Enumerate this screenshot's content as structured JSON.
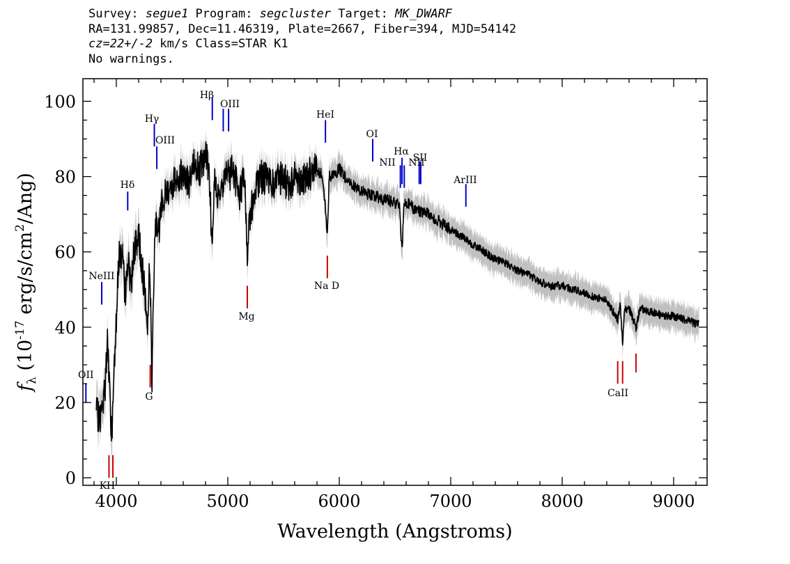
{
  "header": {
    "line1_prefix": "Survey: ",
    "survey": "segue1",
    "program_prefix": " Program: ",
    "program": "segcluster",
    "target_prefix": " Target: ",
    "target": "MK_DWARF",
    "line2": "RA=131.99857, Dec=11.46319, Plate=2667, Fiber=394, MJD=54142",
    "line3_cz": "cz=22+/-2",
    "line3_rest": " km/s Class=STAR K1",
    "line4": "No warnings."
  },
  "chart_data": {
    "type": "line",
    "title": "",
    "xlabel": "Wavelength (Angstroms)",
    "ylabel": "f_λ (10^-17 erg/s/cm^2/Ang)",
    "xlim": [
      3700,
      9300
    ],
    "ylim": [
      -2,
      106
    ],
    "x_ticks": [
      4000,
      5000,
      6000,
      7000,
      8000,
      9000
    ],
    "y_ticks": [
      0,
      20,
      40,
      60,
      80,
      100
    ],
    "x_tick_labels": [
      "4000",
      "5000",
      "6000",
      "7000",
      "8000",
      "9000"
    ],
    "y_tick_labels": [
      "0",
      "20",
      "40",
      "60",
      "80",
      "100"
    ],
    "series": [
      {
        "color": "#000000",
        "error_color": "#c0c0c0",
        "x": [
          3820,
          3850,
          3880,
          3900,
          3920,
          3940,
          3960,
          3980,
          4000,
          4020,
          4050,
          4080,
          4102,
          4130,
          4160,
          4200,
          4240,
          4280,
          4300,
          4320,
          4340,
          4360,
          4380,
          4400,
          4450,
          4500,
          4550,
          4600,
          4650,
          4700,
          4750,
          4800,
          4830,
          4861,
          4880,
          4900,
          4950,
          5000,
          5050,
          5100,
          5150,
          5175,
          5200,
          5250,
          5300,
          5350,
          5400,
          5450,
          5500,
          5550,
          5600,
          5650,
          5700,
          5750,
          5800,
          5850,
          5893,
          5910,
          5950,
          6000,
          6050,
          6100,
          6200,
          6300,
          6400,
          6500,
          6540,
          6563,
          6580,
          6600,
          6700,
          6800,
          6900,
          7000,
          7100,
          7200,
          7300,
          7400,
          7500,
          7600,
          7700,
          7800,
          7900,
          8000,
          8100,
          8200,
          8300,
          8400,
          8498,
          8520,
          8542,
          8560,
          8600,
          8662,
          8700,
          8800,
          8900,
          9000,
          9100,
          9200,
          9230
        ],
        "values": [
          17,
          16,
          18,
          25,
          37,
          22,
          10,
          30,
          43,
          58,
          60,
          48,
          58,
          52,
          60,
          64,
          54,
          40,
          58,
          25,
          60,
          70,
          65,
          72,
          76,
          78,
          80,
          81,
          78,
          83,
          82,
          85,
          83,
          60,
          82,
          75,
          79,
          80,
          82,
          75,
          80,
          60,
          70,
          77,
          80,
          79,
          78,
          80,
          79,
          78,
          80,
          79,
          80,
          81,
          82,
          80,
          65,
          80,
          80,
          82,
          80,
          78,
          76,
          75,
          74,
          73,
          72,
          60,
          72,
          73,
          71,
          70,
          68,
          66,
          64,
          62,
          60,
          58,
          57,
          55,
          54,
          52,
          51,
          51,
          50,
          49,
          48,
          47,
          42,
          46,
          36,
          45,
          45,
          40,
          45,
          44,
          43,
          43,
          42,
          41,
          41
        ]
      }
    ],
    "emission_lines": [
      {
        "label": "OII",
        "wavelength": 3727,
        "y_low": 20,
        "y_high": 25
      },
      {
        "label": "NeIII",
        "wavelength": 3869,
        "y_low": 46,
        "y_high": 52
      },
      {
        "label": "Hδ",
        "wavelength": 4102,
        "y_low": 71,
        "y_high": 76
      },
      {
        "label": "Hγ",
        "wavelength": 4341,
        "y_low": 88,
        "y_high": 94
      },
      {
        "label": "OIII",
        "wavelength": 4363,
        "y_low": 82,
        "y_high": 88
      },
      {
        "label": "Hβ",
        "wavelength": 4861,
        "y_low": 95,
        "y_high": 101
      },
      {
        "label": "OIII",
        "wavelength": 4959,
        "y_low": 92,
        "y_high": 98
      },
      {
        "label": "OIII",
        "wavelength": 5007,
        "y_low": 92,
        "y_high": 98
      },
      {
        "label": "HeI",
        "wavelength": 5876,
        "y_low": 89,
        "y_high": 95
      },
      {
        "label": "OI",
        "wavelength": 6300,
        "y_low": 84,
        "y_high": 90
      },
      {
        "label": "NII",
        "wavelength": 6548,
        "y_low": 77,
        "y_high": 83
      },
      {
        "label": "Hα",
        "wavelength": 6563,
        "y_low": 78,
        "y_high": 85
      },
      {
        "label": "NII",
        "wavelength": 6583,
        "y_low": 77,
        "y_high": 83
      },
      {
        "label": "SII",
        "wavelength": 6717,
        "y_low": 78,
        "y_high": 84
      },
      {
        "label": "SII",
        "wavelength": 6731,
        "y_low": 78,
        "y_high": 84
      },
      {
        "label": "ArIII",
        "wavelength": 7136,
        "y_low": 72,
        "y_high": 78
      }
    ],
    "emission_label_text": [
      "OII",
      "NeIII",
      "Hδ",
      "Hγ",
      "OIII",
      "Hβ",
      "OIII",
      "HeI",
      "OI",
      "NII",
      "Hα",
      "NII",
      "SII",
      "ArIII"
    ],
    "absorption_lines": [
      {
        "label": "K",
        "wavelength": 3934,
        "y_low": 0,
        "y_high": 6
      },
      {
        "label": "H",
        "wavelength": 3969,
        "y_low": 0,
        "y_high": 6
      },
      {
        "label": "G",
        "wavelength": 4304,
        "y_low": 24,
        "y_high": 30
      },
      {
        "label": "Mg",
        "wavelength": 5175,
        "y_low": 45,
        "y_high": 51
      },
      {
        "label": "Na D",
        "wavelength": 5893,
        "y_low": 53,
        "y_high": 59
      },
      {
        "label": "CaII",
        "wavelength": 8498,
        "y_low": 25,
        "y_high": 31
      },
      {
        "label": "CaII",
        "wavelength": 8542,
        "y_low": 25,
        "y_high": 31
      },
      {
        "label": "CaII",
        "wavelength": 8662,
        "y_low": 28,
        "y_high": 33
      }
    ],
    "absorption_label_text": [
      "K",
      "H",
      "G",
      "Mg",
      "Na D",
      "CaII"
    ],
    "emission_color": "#0000cc",
    "absorption_color": "#cc0000",
    "grid": false
  }
}
